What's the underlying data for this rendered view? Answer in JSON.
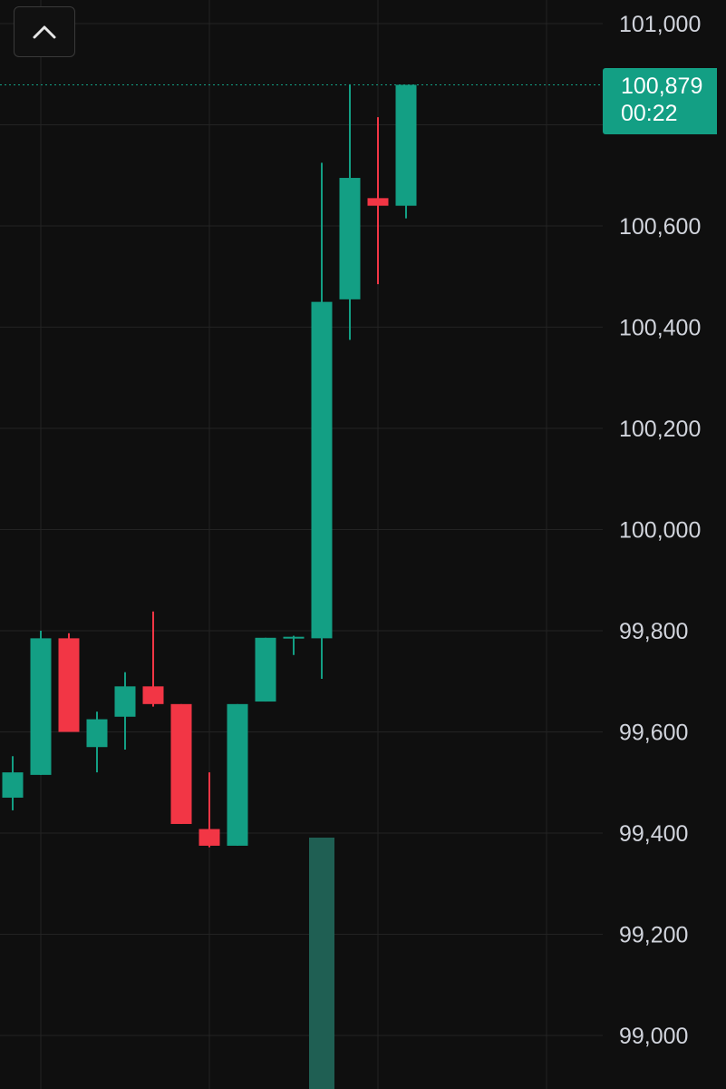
{
  "chart_data": {
    "type": "candlestick",
    "y_axis": {
      "ticks": [
        99000,
        99200,
        99400,
        99600,
        99800,
        100000,
        100200,
        100400,
        100600,
        100800,
        101000
      ],
      "tick_labels": [
        "99,000",
        "99,200",
        "99,400",
        "99,600",
        "99,800",
        "100,000",
        "100,200",
        "100,400",
        "100,600",
        "",
        "101,000"
      ],
      "range": [
        98935,
        101050
      ],
      "position": "right"
    },
    "grid": true,
    "candles": [
      {
        "open": 99470,
        "high": 99552,
        "low": 99445,
        "close": 99520
      },
      {
        "open": 99515,
        "high": 99800,
        "low": 99515,
        "close": 99785
      },
      {
        "open": 99785,
        "high": 99795,
        "low": 99600,
        "close": 99600
      },
      {
        "open": 99570,
        "high": 99640,
        "low": 99520,
        "close": 99625
      },
      {
        "open": 99630,
        "high": 99718,
        "low": 99565,
        "close": 99690
      },
      {
        "open": 99690,
        "high": 99838,
        "low": 99650,
        "close": 99655
      },
      {
        "open": 99655,
        "high": 99655,
        "low": 99418,
        "close": 99418
      },
      {
        "open": 99408,
        "high": 99520,
        "low": 99372,
        "close": 99375
      },
      {
        "open": 99375,
        "high": 99655,
        "low": 99375,
        "close": 99655
      },
      {
        "open": 99660,
        "high": 99786,
        "low": 99660,
        "close": 99786
      },
      {
        "open": 99785,
        "high": 99790,
        "low": 99752,
        "close": 99788
      },
      {
        "open": 99785,
        "high": 100725,
        "low": 99705,
        "close": 100450
      },
      {
        "open": 100455,
        "high": 100880,
        "low": 100375,
        "close": 100695
      },
      {
        "open": 100655,
        "high": 100815,
        "low": 100485,
        "close": 100640
      },
      {
        "open": 100640,
        "high": 100879,
        "low": 100615,
        "close": 100879
      }
    ],
    "volume": [
      {
        "candle_index": 11,
        "value": 1.0
      }
    ],
    "last_price": 100879,
    "last_price_label": "100,879",
    "countdown": "00:22",
    "colors": {
      "up": "#139f84",
      "down": "#f23645",
      "volume_up": "#1f5f53",
      "grid": "#232323",
      "axis_text": "#d1d4dc",
      "background": "#0f0f0f",
      "price_label_bg": "#139f84"
    }
  },
  "ui": {
    "collapse_icon": "chevron-up-icon"
  }
}
